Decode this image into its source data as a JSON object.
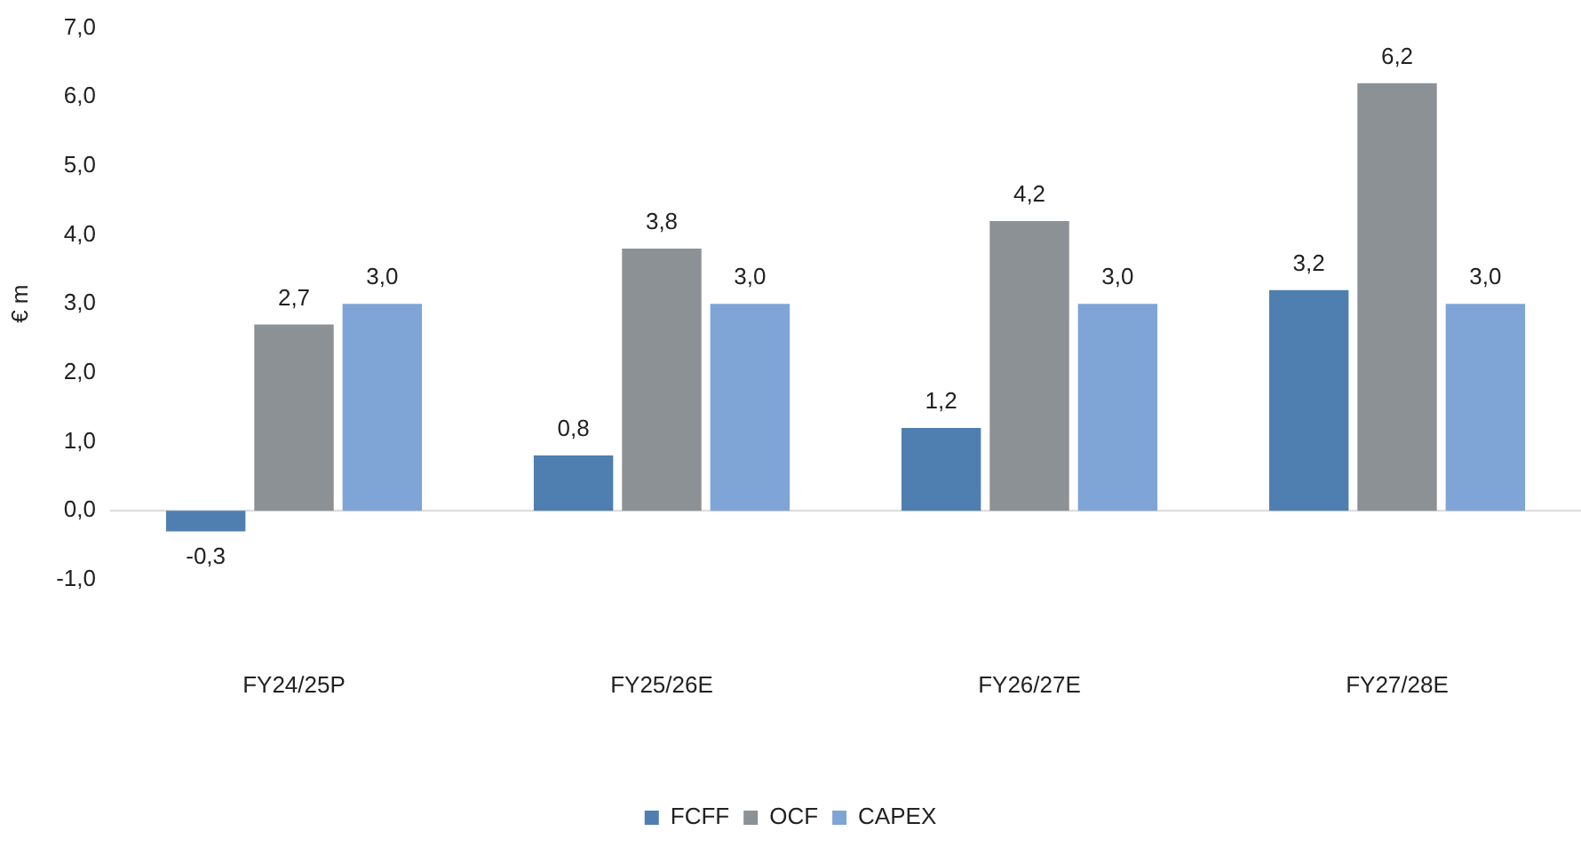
{
  "chart_data": {
    "type": "bar",
    "ylabel": "€ m",
    "categories": [
      "FY24/25P",
      "FY25/26E",
      "FY26/27E",
      "FY27/28E"
    ],
    "series": [
      {
        "name": "FCFF",
        "color": "#4f7fb0",
        "values": [
          -0.3,
          0.8,
          1.2,
          3.2
        ],
        "value_labels": [
          "-0,3",
          "0,8",
          "1,2",
          "3,2"
        ]
      },
      {
        "name": "OCF",
        "color": "#8c9195",
        "values": [
          2.7,
          3.8,
          4.2,
          6.2
        ],
        "value_labels": [
          "2,7",
          "3,8",
          "4,2",
          "6,2"
        ]
      },
      {
        "name": "CAPEX",
        "color": "#7fa4d6",
        "values": [
          3.0,
          3.0,
          3.0,
          3.0
        ],
        "value_labels": [
          "3,0",
          "3,0",
          "3,0",
          "3,0"
        ]
      }
    ],
    "ylim": [
      -1,
      7
    ],
    "yticks": [
      {
        "value": -1,
        "label": "-1,0"
      },
      {
        "value": 0,
        "label": "0,0"
      },
      {
        "value": 1,
        "label": "1,0"
      },
      {
        "value": 2,
        "label": "2,0"
      },
      {
        "value": 3,
        "label": "3,0"
      },
      {
        "value": 4,
        "label": "4,0"
      },
      {
        "value": 5,
        "label": "5,0"
      },
      {
        "value": 6,
        "label": "6,0"
      },
      {
        "value": 7,
        "label": "7,0"
      }
    ],
    "ref_lines": [
      {
        "axis": "y",
        "value": 0,
        "color": "#d9d9d9"
      }
    ],
    "grid": false,
    "legend": "bottom"
  }
}
